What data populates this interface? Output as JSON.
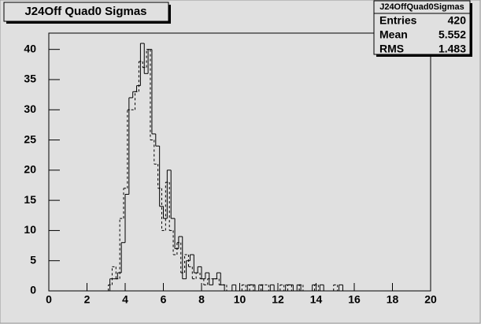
{
  "chart_data": {
    "type": "histogram",
    "title": "J24Off Quad0 Sigmas",
    "bins": [
      3.0,
      3.2,
      3.4,
      3.6,
      3.8,
      4.0,
      4.2,
      4.4,
      4.6,
      4.8,
      5.0,
      5.2,
      5.4,
      5.6,
      5.8,
      6.0,
      6.2,
      6.4,
      6.6,
      6.8,
      7.0,
      7.2,
      7.4,
      7.6,
      7.8,
      8.0,
      8.2,
      8.4,
      8.6,
      8.8,
      9.0,
      9.2,
      9.4,
      9.6,
      9.8,
      10.0,
      10.2,
      10.4,
      10.6,
      10.8,
      11.0,
      11.2,
      11.4,
      11.6,
      11.8,
      12.0,
      12.2,
      12.4,
      12.6,
      12.8,
      13.0,
      13.2,
      13.4,
      13.6,
      13.8,
      14.0,
      14.2,
      14.4,
      14.6,
      14.8,
      15.0,
      15.2,
      15.4,
      15.6
    ],
    "series": [
      {
        "style": "solid",
        "color": "#000000",
        "counts": [
          0,
          2,
          2,
          3,
          8,
          16,
          32,
          33,
          34,
          41,
          36,
          40,
          26,
          24,
          14,
          12,
          20,
          12,
          7,
          9,
          2,
          5,
          6,
          3,
          4,
          2,
          3,
          1,
          2,
          3,
          1,
          0,
          0,
          1,
          0,
          0,
          0,
          1,
          1,
          0,
          1,
          0,
          0,
          1,
          0,
          0,
          0,
          1,
          1,
          0,
          1,
          0,
          0,
          0,
          1,
          0,
          1,
          0,
          0,
          0,
          0,
          1,
          0
        ]
      },
      {
        "style": "dashed",
        "color": "#000000",
        "counts": [
          0,
          1,
          4,
          2,
          12,
          17,
          30,
          30,
          33,
          38,
          37,
          40,
          25,
          21,
          17,
          10,
          18,
          10,
          6,
          8,
          3,
          6,
          4,
          2,
          3,
          2,
          1,
          2,
          2,
          2,
          1,
          1,
          0,
          0,
          0,
          0,
          1,
          0,
          1,
          0,
          0,
          1,
          1,
          0,
          0,
          0,
          1,
          0,
          1,
          0,
          0,
          1,
          0,
          0,
          0,
          1,
          0,
          0,
          0,
          0,
          1,
          0,
          0
        ]
      }
    ],
    "xlim": [
      0,
      20
    ],
    "xticks": [
      0,
      2,
      4,
      6,
      8,
      10,
      12,
      14,
      16,
      18,
      20
    ],
    "ylim": [
      0,
      42.7
    ],
    "yticks": [
      0,
      5,
      10,
      15,
      20,
      25,
      30,
      35,
      40
    ],
    "stats": {
      "title": "J24OffQuad0Sigmas",
      "rows": [
        {
          "label": "Entries",
          "value": 420
        },
        {
          "label": "Mean",
          "value": 5.552
        },
        {
          "label": "RMS",
          "value": 1.483
        }
      ]
    }
  }
}
